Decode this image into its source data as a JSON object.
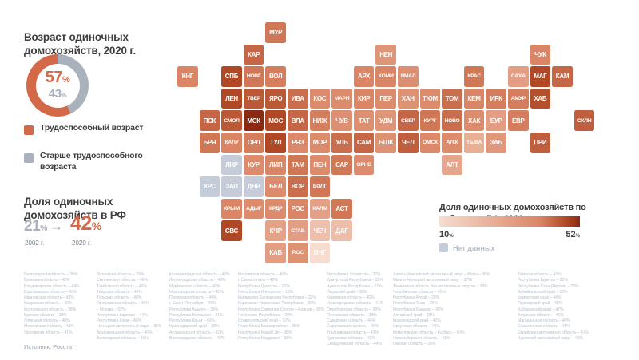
{
  "units": {
    "percent": "%"
  },
  "icons": {
    "arrow_right": "→"
  },
  "map_legend": {
    "min_label": "10",
    "max_label": "52",
    "no_data_label": "Нет данных",
    "no_data_color": "#c3ccd8"
  },
  "source": "Источник: Росстат",
  "chart_data": [
    {
      "type": "pie",
      "title": "Возраст одиночных домохозяйств, 2020 г.",
      "labels": [
        "Трудоспособный возраст",
        "Старше трудоспособного возраста"
      ],
      "values": [
        57,
        43
      ],
      "colors": [
        "#d4694a",
        "#a9b1bc"
      ]
    },
    {
      "type": "bar",
      "title": "Доля одиночных домохозяйств в РФ",
      "categories": [
        "2002 г.",
        "2020 г."
      ],
      "values": [
        21,
        42
      ],
      "colors": [
        "#a9b1bc",
        "#d4694a"
      ]
    },
    {
      "type": "heatmap",
      "title": "Доля одиночных домохозяйств по субъектам РФ, 2020",
      "colorscale": {
        "min": 10,
        "max": 52,
        "stops": [
          [
            10,
            "#f7ddd0"
          ],
          [
            40,
            "#da8666"
          ],
          [
            48,
            "#b04826"
          ],
          [
            52,
            "#8b2912"
          ]
        ]
      },
      "tiles": [
        [
          "МУР",
          0,
          4,
          42
        ],
        [
          "КАР",
          1,
          3,
          44
        ],
        [
          "НЕН",
          1,
          9,
          35
        ],
        [
          "ЧУК",
          1,
          16,
          40
        ],
        [
          "КНГ",
          2,
          0,
          40
        ],
        [
          "СПБ",
          2,
          2,
          48
        ],
        [
          "НОВГ",
          2,
          3,
          42
        ],
        [
          "ВОЛ",
          2,
          4,
          41
        ],
        [
          "АРХ",
          2,
          8,
          40
        ],
        [
          "КОМИ",
          2,
          9,
          40
        ],
        [
          "ЯМАЛ",
          2,
          10,
          37
        ],
        [
          "КРАС",
          2,
          13,
          42
        ],
        [
          "САХА",
          2,
          15,
          32
        ],
        [
          "МАГ",
          2,
          16,
          48
        ],
        [
          "КАМ",
          2,
          17,
          44
        ],
        [
          "ЛЕН",
          3,
          2,
          48
        ],
        [
          "ТВЕР",
          3,
          3,
          46
        ],
        [
          "ЯРО",
          3,
          4,
          46
        ],
        [
          "ИВА",
          3,
          5,
          43
        ],
        [
          "КОС",
          3,
          6,
          38
        ],
        [
          "МАРИ",
          3,
          7,
          38
        ],
        [
          "КИР",
          3,
          8,
          40
        ],
        [
          "ПЕР",
          3,
          9,
          38
        ],
        [
          "ХАН",
          3,
          10,
          36
        ],
        [
          "ТЮМ",
          3,
          11,
          38
        ],
        [
          "ТОМ",
          3,
          12,
          43
        ],
        [
          "КЕМ",
          3,
          13,
          40
        ],
        [
          "ИРК",
          3,
          14,
          41
        ],
        [
          "АМУР",
          3,
          15,
          41
        ],
        [
          "ХАБ",
          3,
          16,
          47
        ],
        [
          "ПСК",
          4,
          1,
          44
        ],
        [
          "СМОЛ",
          4,
          2,
          46
        ],
        [
          "МСК",
          4,
          3,
          52
        ],
        [
          "МОС",
          4,
          4,
          48
        ],
        [
          "ВЛА",
          4,
          5,
          44
        ],
        [
          "НИЖ",
          4,
          6,
          41
        ],
        [
          "ЧУВ",
          4,
          7,
          37
        ],
        [
          "ТАТ",
          4,
          8,
          37
        ],
        [
          "УДМ",
          4,
          9,
          35
        ],
        [
          "СВЕР",
          4,
          10,
          44
        ],
        [
          "КУРГ",
          4,
          11,
          42
        ],
        [
          "НОВО",
          4,
          12,
          43
        ],
        [
          "ХАК",
          4,
          13,
          38
        ],
        [
          "БУР",
          4,
          14,
          32
        ],
        [
          "ЕВР",
          4,
          15,
          41
        ],
        [
          "СХЛН",
          4,
          18,
          45
        ],
        [
          "БРЯ",
          5,
          1,
          42
        ],
        [
          "КАЛУ",
          5,
          2,
          40
        ],
        [
          "ОРЛ",
          5,
          3,
          41
        ],
        [
          "ТУЛ",
          5,
          4,
          48
        ],
        [
          "РЯЗ",
          5,
          5,
          39
        ],
        [
          "МОР",
          5,
          6,
          38
        ],
        [
          "УЛЬ",
          5,
          7,
          43
        ],
        [
          "САМ",
          5,
          8,
          44
        ],
        [
          "БШК",
          5,
          9,
          36
        ],
        [
          "ЧЕЛ",
          5,
          10,
          45
        ],
        [
          "ОМСК",
          5,
          11,
          39
        ],
        [
          "АЛ.К",
          5,
          12,
          38
        ],
        [
          "ТЫВА",
          5,
          13,
          26
        ],
        [
          "ЗАБ",
          5,
          14,
          34
        ],
        [
          "ПРИ",
          5,
          16,
          45
        ],
        [
          "ЛНР",
          6,
          2,
          null
        ],
        [
          "КУР",
          6,
          3,
          38
        ],
        [
          "ЛИП",
          6,
          4,
          40
        ],
        [
          "ТАМ",
          6,
          5,
          42
        ],
        [
          "ПЕН",
          6,
          6,
          38
        ],
        [
          "САР",
          6,
          7,
          42
        ],
        [
          "ОРНБ",
          6,
          8,
          38
        ],
        [
          "АЛТ",
          6,
          12,
          29
        ],
        [
          "ХРС",
          7,
          1,
          null
        ],
        [
          "ЗАП",
          7,
          2,
          null
        ],
        [
          "ДНР",
          7,
          3,
          null
        ],
        [
          "БЕЛ",
          7,
          4,
          38
        ],
        [
          "ВОР",
          7,
          5,
          43
        ],
        [
          "ВОЛГ",
          7,
          6,
          42
        ],
        [
          "КРЫМ",
          8,
          2,
          40
        ],
        [
          "АДЫГ",
          8,
          3,
          38
        ],
        [
          "КРДР",
          8,
          4,
          38
        ],
        [
          "РОС",
          8,
          5,
          40
        ],
        [
          "КАЛМ",
          8,
          6,
          31
        ],
        [
          "АСТ",
          8,
          7,
          42
        ],
        [
          "СВС",
          9,
          2,
          48
        ],
        [
          "КЧР",
          9,
          4,
          30
        ],
        [
          "СТАВ",
          9,
          5,
          32
        ],
        [
          "ЧЕЧ",
          9,
          6,
          20
        ],
        [
          "ДАГ",
          9,
          7,
          21
        ],
        [
          "КАБ",
          10,
          4,
          32
        ],
        [
          "Р.ОС",
          10,
          5,
          36
        ],
        [
          "ИНГ",
          10,
          6,
          10
        ]
      ],
      "regions_columns": [
        [
          {
            "name": "Белгородская область",
            "value": 38
          },
          {
            "name": "Брянская область",
            "value": 42
          },
          {
            "name": "Владимирская область",
            "value": 44
          },
          {
            "name": "Воронежская область",
            "value": 43
          },
          {
            "name": "Ивановская область",
            "value": 43
          },
          {
            "name": "Калужская область",
            "value": 40
          },
          {
            "name": "Костромская область",
            "value": 38
          },
          {
            "name": "Курская область",
            "value": 38
          },
          {
            "name": "Липецкая область",
            "value": 40
          },
          {
            "name": "Московская область",
            "value": 48
          },
          {
            "name": "Орловская область",
            "value": 41
          }
        ],
        [
          {
            "name": "Рязанская область",
            "value": 39
          },
          {
            "name": "Смоленская область",
            "value": 46
          },
          {
            "name": "Тамбовская область",
            "value": 42
          },
          {
            "name": "Тверская область",
            "value": 46
          },
          {
            "name": "Тульская область",
            "value": 48
          },
          {
            "name": "Ярославская область",
            "value": 46
          },
          {
            "name": "г. Москва",
            "value": 52
          },
          {
            "name": "Республика Карелия",
            "value": 44
          },
          {
            "name": "Республика Коми",
            "value": 40
          },
          {
            "name": "Ненецкий автономный округ",
            "value": 35
          },
          {
            "name": "Архангельская область",
            "value": 40
          },
          {
            "name": "Вологодская область",
            "value": 41
          }
        ],
        [
          {
            "name": "Калининградская область",
            "value": 40
          },
          {
            "name": "Ленинградская область",
            "value": 48
          },
          {
            "name": "Мурманская область",
            "value": 42
          },
          {
            "name": "Новгородская область",
            "value": 42
          },
          {
            "name": "Псковская область",
            "value": 44
          },
          {
            "name": "г. Санкт-Петербург",
            "value": 48
          },
          {
            "name": "Республика Адыгея",
            "value": 38
          },
          {
            "name": "Республика Калмыкия",
            "value": 31
          },
          {
            "name": "Республика Крым",
            "value": 40
          },
          {
            "name": "Краснодарский край",
            "value": 38
          },
          {
            "name": "Астраханская область",
            "value": 42
          },
          {
            "name": "Волгоградская область",
            "value": 42
          }
        ],
        [
          {
            "name": "Ростовская область",
            "value": 40
          },
          {
            "name": "г. Севастополь",
            "value": 48
          },
          {
            "name": "Республика Дагестан",
            "value": 21
          },
          {
            "name": "Республика Ингушетия",
            "value": 10
          },
          {
            "name": "Кабардино-Балкарская Республика",
            "value": 32
          },
          {
            "name": "Карачаево-Черкесская Республика",
            "value": 30
          },
          {
            "name": "Республика Северная Осетия – Алания",
            "value": 36
          },
          {
            "name": "Чеченская Республика",
            "value": 20
          },
          {
            "name": "Ставропольский край",
            "value": 32
          },
          {
            "name": "Республика Башкортостан",
            "value": 36
          },
          {
            "name": "Республика Марий Эл",
            "value": 38
          },
          {
            "name": "Республика Мордовия",
            "value": 38
          }
        ],
        [
          {
            "name": "Республика Татарстан",
            "value": 37
          },
          {
            "name": "Удмуртская Республика",
            "value": 35
          },
          {
            "name": "Чувашская Республика",
            "value": 37
          },
          {
            "name": "Пермский край",
            "value": 38
          },
          {
            "name": "Кировская область",
            "value": 40
          },
          {
            "name": "Нижегородская область",
            "value": 41
          },
          {
            "name": "Оренбургская область",
            "value": 38
          },
          {
            "name": "Пензенская область",
            "value": 38
          },
          {
            "name": "Самарская область",
            "value": 44
          },
          {
            "name": "Саратовская область",
            "value": 42
          },
          {
            "name": "Ульяновская область",
            "value": 43
          },
          {
            "name": "Курганская область",
            "value": 42
          },
          {
            "name": "Свердловская область",
            "value": 44
          }
        ],
        [
          {
            "name": "Ханты-Мансийский автономный округ – Югра",
            "value": 36
          },
          {
            "name": "Ямало-Ненецкий автономный округ",
            "value": 37
          },
          {
            "name": "Тюменская область без автономных округов",
            "value": 38
          },
          {
            "name": "Челябинская область",
            "value": 45
          },
          {
            "name": "Республика Алтай",
            "value": 29
          },
          {
            "name": "Республика Тыва",
            "value": 26
          },
          {
            "name": "Республика Хакасия",
            "value": 38
          },
          {
            "name": "Алтайский край",
            "value": 38
          },
          {
            "name": "Красноярский край",
            "value": 42
          },
          {
            "name": "Иркутская область",
            "value": 41
          },
          {
            "name": "Кемеровская область – Кузбасс",
            "value": 40
          },
          {
            "name": "Новосибирская область",
            "value": 43
          },
          {
            "name": "Омская область",
            "value": 39
          }
        ],
        [
          {
            "name": "Томская область",
            "value": 43
          },
          {
            "name": "Республика Бурятия",
            "value": 32
          },
          {
            "name": "Республика Саха (Якутия)",
            "value": 32
          },
          {
            "name": "Забайкальский край",
            "value": 34
          },
          {
            "name": "Камчатский край",
            "value": 44
          },
          {
            "name": "Приморский край",
            "value": 45
          },
          {
            "name": "Хабаровский край",
            "value": 47
          },
          {
            "name": "Амурская область",
            "value": 41
          },
          {
            "name": "Магаданская область",
            "value": 48
          },
          {
            "name": "Сахалинская область",
            "value": 45
          },
          {
            "name": "Еврейская автономная область",
            "value": 41
          },
          {
            "name": "Чукотский автономный округ",
            "value": 40
          }
        ]
      ]
    }
  ]
}
